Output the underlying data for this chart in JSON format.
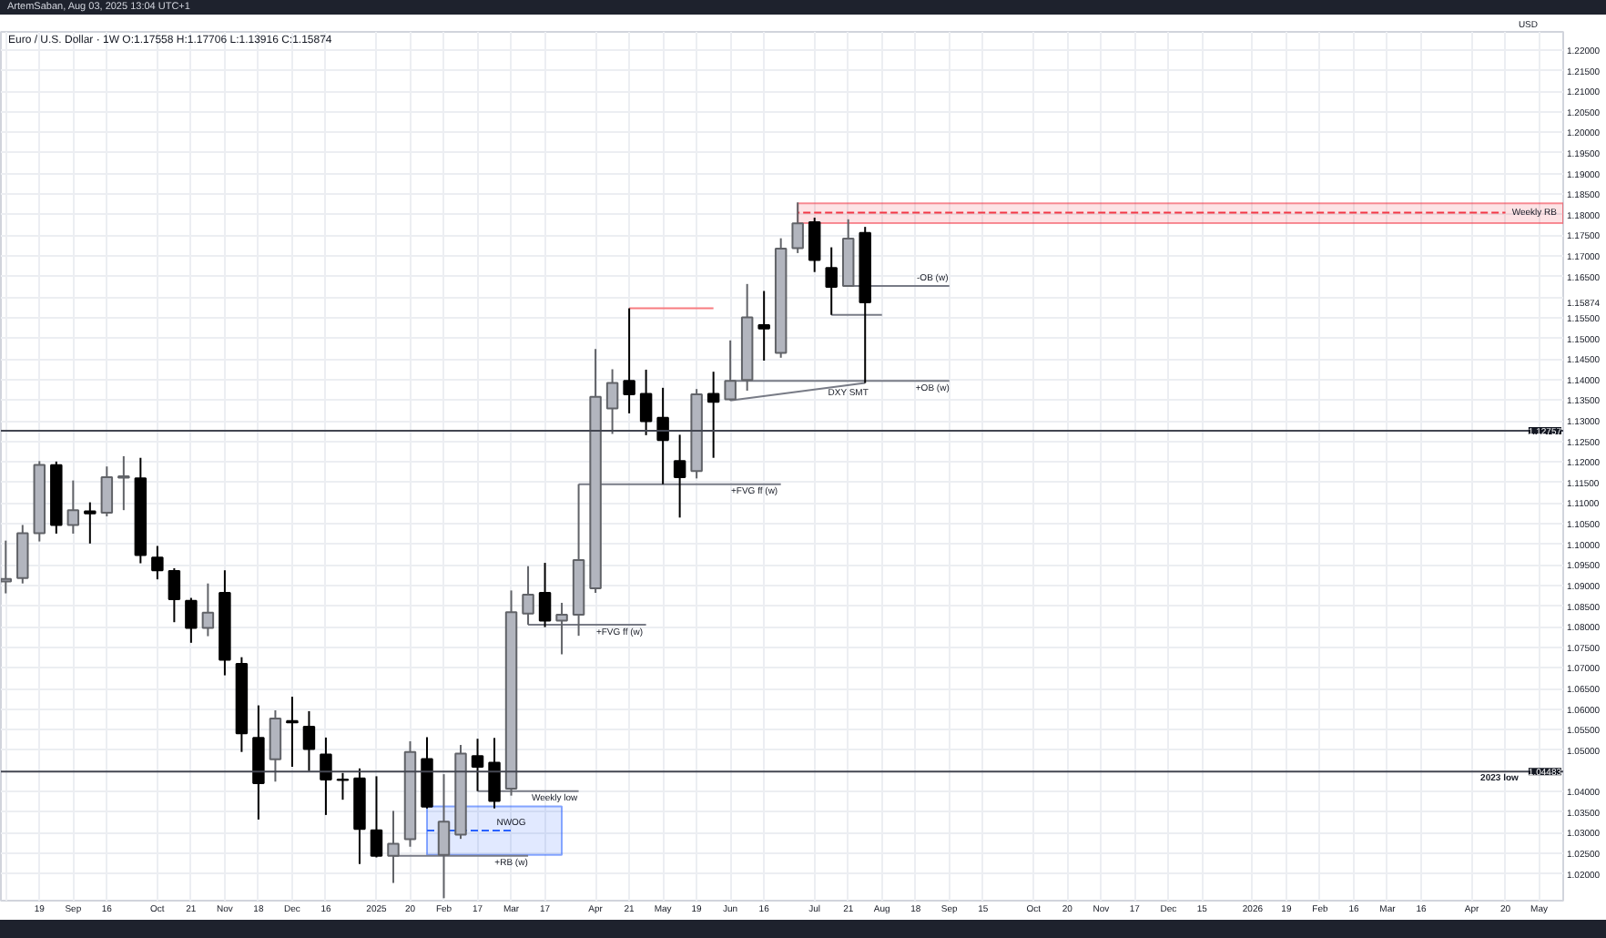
{
  "chart_data": {
    "type": "candlestick",
    "title": "Euro / U.S. Dollar · 1W  O:1.17558 H:1.17706 L:1.13916 C:1.15874",
    "ylabel": "USD",
    "x": [
      "2024-08-05",
      "2024-08-12",
      "2024-08-19",
      "2024-08-26",
      "2024-09-02",
      "2024-09-09",
      "2024-09-16",
      "2024-09-23",
      "2024-09-30",
      "2024-10-07",
      "2024-10-14",
      "2024-10-21",
      "2024-10-28",
      "2024-11-04",
      "2024-11-11",
      "2024-11-18",
      "2024-11-25",
      "2024-12-02",
      "2024-12-09",
      "2024-12-16",
      "2024-12-23",
      "2024-12-30",
      "2025-01-06",
      "2025-01-13",
      "2025-01-20",
      "2025-01-27",
      "2025-02-03",
      "2025-02-10",
      "2025-02-17",
      "2025-02-24",
      "2025-03-03",
      "2025-03-10",
      "2025-03-17",
      "2025-03-24",
      "2025-03-31",
      "2025-04-07",
      "2025-04-14",
      "2025-04-21",
      "2025-04-28",
      "2025-05-05",
      "2025-05-12",
      "2025-05-19",
      "2025-05-26",
      "2025-06-02",
      "2025-06-09",
      "2025-06-16",
      "2025-06-23",
      "2025-06-30",
      "2025-07-07",
      "2025-07-14",
      "2025-07-21",
      "2025-07-28"
    ],
    "ohlc": [
      [
        1.091,
        1.1009,
        1.0881,
        1.0916
      ],
      [
        1.0918,
        1.1047,
        1.0905,
        1.1027
      ],
      [
        1.1027,
        1.1202,
        1.1007,
        1.1193
      ],
      [
        1.1192,
        1.1201,
        1.1026,
        1.1047
      ],
      [
        1.1047,
        1.1155,
        1.1026,
        1.1083
      ],
      [
        1.108,
        1.1102,
        1.1002,
        1.1075
      ],
      [
        1.1077,
        1.1189,
        1.1068,
        1.1163
      ],
      [
        1.1162,
        1.1214,
        1.1083,
        1.1165
      ],
      [
        1.116,
        1.121,
        1.0954,
        1.0974
      ],
      [
        1.0968,
        1.0996,
        1.0915,
        1.0937
      ],
      [
        1.0935,
        1.0942,
        1.0811,
        1.0867
      ],
      [
        1.0863,
        1.087,
        1.0761,
        1.0797
      ],
      [
        1.0797,
        1.0905,
        1.0777,
        1.0834
      ],
      [
        1.0882,
        1.0937,
        1.0682,
        1.072
      ],
      [
        1.071,
        1.0726,
        1.0496,
        1.0541
      ],
      [
        1.053,
        1.0609,
        1.0332,
        1.042
      ],
      [
        1.0478,
        1.0597,
        1.0424,
        1.0577
      ],
      [
        1.0571,
        1.063,
        1.046,
        1.0568
      ],
      [
        1.0557,
        1.0595,
        1.045,
        1.0503
      ],
      [
        1.049,
        1.0531,
        1.0343,
        1.0429
      ],
      [
        1.0429,
        1.0445,
        1.038,
        1.0428
      ],
      [
        1.0432,
        1.0456,
        1.0224,
        1.0309
      ],
      [
        1.0306,
        1.0437,
        1.024,
        1.0244
      ],
      [
        1.0244,
        1.0353,
        1.0178,
        1.0273
      ],
      [
        1.0284,
        1.0522,
        1.0266,
        1.0496
      ],
      [
        1.0479,
        1.0532,
        1.0359,
        1.0363
      ],
      [
        1.0246,
        1.0442,
        1.0141,
        1.0327
      ],
      [
        1.0295,
        1.0513,
        1.0285,
        1.0492
      ],
      [
        1.0486,
        1.0528,
        1.0401,
        1.046
      ],
      [
        1.047,
        1.053,
        1.0359,
        1.0377
      ],
      [
        1.0407,
        1.0888,
        1.039,
        1.0835
      ],
      [
        1.0832,
        1.0947,
        1.0805,
        1.0878
      ],
      [
        1.0882,
        1.0955,
        1.0799,
        1.0815
      ],
      [
        1.0815,
        1.0858,
        1.0733,
        1.0829
      ],
      [
        1.0829,
        1.1146,
        1.0778,
        1.0962
      ],
      [
        1.0893,
        1.1474,
        1.0882,
        1.1358
      ],
      [
        1.133,
        1.1425,
        1.1268,
        1.1392
      ],
      [
        1.1397,
        1.1573,
        1.1318,
        1.1364
      ],
      [
        1.1365,
        1.1424,
        1.1265,
        1.1299
      ],
      [
        1.1307,
        1.138,
        1.1146,
        1.1253
      ],
      [
        1.1202,
        1.1266,
        1.1065,
        1.1163
      ],
      [
        1.1178,
        1.1377,
        1.116,
        1.1364
      ],
      [
        1.1365,
        1.1419,
        1.121,
        1.1346
      ],
      [
        1.1352,
        1.1495,
        1.1349,
        1.1397
      ],
      [
        1.1399,
        1.1632,
        1.1373,
        1.1551
      ],
      [
        1.1532,
        1.1615,
        1.1446,
        1.1524
      ],
      [
        1.1465,
        1.1743,
        1.1453,
        1.1718
      ],
      [
        1.1719,
        1.183,
        1.1707,
        1.1779
      ],
      [
        1.1782,
        1.1793,
        1.1661,
        1.169
      ],
      [
        1.1671,
        1.1721,
        1.1557,
        1.1625
      ],
      [
        1.1627,
        1.1789,
        1.1625,
        1.1742
      ],
      [
        1.17558,
        1.17706,
        1.13916,
        1.15874
      ]
    ],
    "colors": [
      "#b2b5be",
      "#b2b5be",
      "#b2b5be",
      "#000000",
      "#b2b5be",
      "#000000",
      "#b2b5be",
      "#b2b5be",
      "#000000",
      "#000000",
      "#000000",
      "#000000",
      "#b2b5be",
      "#000000",
      "#000000",
      "#000000",
      "#b2b5be",
      "#000000",
      "#000000",
      "#000000",
      "#000000",
      "#000000",
      "#000000",
      "#b2b5be",
      "#b2b5be",
      "#000000",
      "#b2b5be",
      "#b2b5be",
      "#000000",
      "#000000",
      "#b2b5be",
      "#b2b5be",
      "#000000",
      "#b2b5be",
      "#b2b5be",
      "#b2b5be",
      "#b2b5be",
      "#000000",
      "#000000",
      "#000000",
      "#000000",
      "#b2b5be",
      "#000000",
      "#b2b5be",
      "#b2b5be",
      "#000000",
      "#b2b5be",
      "#b2b5be",
      "#000000",
      "#000000",
      "#b2b5be",
      "#000000"
    ],
    "series": [
      {
        "type": "line",
        "color": "#f23645",
        "line_style": "dashed",
        "x": [
          "2025-06-30",
          "2026-04-20",
          "2026-05-14"
        ],
        "values": [
          1.1805,
          1.1805,
          null
        ],
        "lower": [
          1.178,
          1.178,
          1.178
        ],
        "upper": [
          1.1828,
          1.1828,
          1.1828
        ]
      },
      {
        "type": "line",
        "color": "#2962ff",
        "line_style": "dashed",
        "x": [
          "2025-01-27",
          "2025-03-03",
          "2025-03-24"
        ],
        "values": [
          1.0305,
          1.0305,
          null
        ],
        "lower": [
          1.0246,
          1.0246,
          1.0246
        ],
        "upper": [
          1.0364,
          1.0364,
          1.0364
        ]
      },
      {
        "type": "line",
        "color": "#f77c80",
        "x": [
          "2025-04-21",
          "2025-05-26"
        ],
        "values": [
          1.1573,
          1.1573
        ]
      },
      {
        "type": "line",
        "color": "#787b86",
        "x": [
          "2025-07-21",
          "2025-09-01"
        ],
        "values": [
          1.1627,
          1.1627
        ]
      },
      {
        "type": "line",
        "color": "#787b86",
        "x": [
          "2025-07-14",
          "2025-08-04"
        ],
        "values": [
          1.1557,
          1.1557
        ]
      },
      {
        "type": "line",
        "color": "#787b86",
        "x": [
          "2025-06-02",
          "2025-09-01"
        ],
        "values": [
          1.1397,
          1.1397
        ]
      },
      {
        "type": "line",
        "color": "#787b86",
        "x": [
          "2025-06-02",
          "2025-07-28"
        ],
        "values": [
          1.1349,
          1.1392
        ]
      },
      {
        "type": "line",
        "color": "#787b86",
        "x": [
          "2025-03-31",
          "2025-06-23"
        ],
        "values": [
          1.1146,
          1.1146
        ]
      },
      {
        "type": "line",
        "color": "#787b86",
        "x": [
          "2025-03-10",
          "2025-04-28"
        ],
        "values": [
          1.0805,
          1.0805
        ]
      },
      {
        "type": "line",
        "color": "#787b86",
        "x": [
          "2025-02-17",
          "2025-03-31"
        ],
        "values": [
          1.0401,
          1.0401
        ]
      },
      {
        "type": "line",
        "color": "#787b86",
        "x": [
          "2025-01-13",
          "2025-03-10"
        ],
        "values": [
          1.0244,
          1.0244
        ]
      }
    ],
    "ref_lines": [
      {
        "axis": "y",
        "value": 1.12757,
        "label": null,
        "color": "#434651"
      },
      {
        "axis": "y",
        "value": 1.04483,
        "label": "2023 low",
        "color": "#434651"
      }
    ],
    "annotations": [
      "ArtemSaban, Aug 03, 2025 13:04 UTC+1",
      {
        "text": "Weekly RB",
        "x": "2026-05-02",
        "y": 1.1805
      },
      {
        "text": "-OB (w)",
        "x": "2025-08-25",
        "y": 1.1646
      },
      {
        "text": "+OB (w)",
        "x": "2025-08-25",
        "y": 1.1378
      },
      {
        "text": "DXY SMT",
        "x": "2025-07-21",
        "y": 1.1366
      },
      {
        "text": "+FVG ff (w)",
        "x": "2025-06-12",
        "y": 1.1127
      },
      {
        "text": "+FVG ff (w)",
        "x": "2025-04-17",
        "y": 1.0786
      },
      {
        "text": "Weekly low",
        "x": "2025-03-21",
        "y": 1.0382
      },
      {
        "text": "NWOG",
        "x": "2025-03-03",
        "y": 1.0324
      },
      {
        "text": "+RB (w)",
        "x": "2025-03-03",
        "y": 1.0225
      },
      {
        "text": "1.12757",
        "x": "2026-05-14",
        "y": 1.12757
      },
      {
        "text": "1.04483",
        "x": "2026-05-14",
        "y": 1.04483
      }
    ],
    "xlim": [
      "2024-08-03",
      "2026-05-14"
    ],
    "xticks": [
      {
        "value": "2024-08-05",
        "label": null
      },
      {
        "value": "2024-08-19",
        "label": "19"
      },
      {
        "value": "2024-09-02",
        "label": "Sep"
      },
      {
        "value": "2024-09-16",
        "label": "16"
      },
      {
        "value": "2024-10-07",
        "label": "Oct"
      },
      {
        "value": "2024-10-21",
        "label": "21"
      },
      {
        "value": "2024-11-04",
        "label": "Nov"
      },
      {
        "value": "2024-11-18",
        "label": "18"
      },
      {
        "value": "2024-12-02",
        "label": "Dec"
      },
      {
        "value": "2024-12-16",
        "label": "16"
      },
      {
        "value": "2025-01-06",
        "label": "2025"
      },
      {
        "value": "2025-01-20",
        "label": "20"
      },
      {
        "value": "2025-02-03",
        "label": "Feb"
      },
      {
        "value": "2025-02-17",
        "label": "17"
      },
      {
        "value": "2025-03-03",
        "label": "Mar"
      },
      {
        "value": "2025-03-17",
        "label": "17"
      },
      {
        "value": "2025-04-07",
        "label": "Apr"
      },
      {
        "value": "2025-04-21",
        "label": "21"
      },
      {
        "value": "2025-05-05",
        "label": "May"
      },
      {
        "value": "2025-05-19",
        "label": "19"
      },
      {
        "value": "2025-06-02",
        "label": "Jun"
      },
      {
        "value": "2025-06-16",
        "label": "16"
      },
      {
        "value": "2025-07-07",
        "label": "Jul"
      },
      {
        "value": "2025-07-21",
        "label": "21"
      },
      {
        "value": "2025-08-04",
        "label": "Aug"
      },
      {
        "value": "2025-08-18",
        "label": "18"
      },
      {
        "value": "2025-09-01",
        "label": "Sep"
      },
      {
        "value": "2025-09-15",
        "label": "15"
      },
      {
        "value": "2025-10-06",
        "label": "Oct"
      },
      {
        "value": "2025-10-20",
        "label": "20"
      },
      {
        "value": "2025-11-03",
        "label": "Nov"
      },
      {
        "value": "2025-11-17",
        "label": "17"
      },
      {
        "value": "2025-12-01",
        "label": "Dec"
      },
      {
        "value": "2025-12-15",
        "label": "15"
      },
      {
        "value": "2026-01-05",
        "label": "2026"
      },
      {
        "value": "2026-01-19",
        "label": "19"
      },
      {
        "value": "2026-02-02",
        "label": "Feb"
      },
      {
        "value": "2026-02-16",
        "label": "16"
      },
      {
        "value": "2026-03-02",
        "label": "Mar"
      },
      {
        "value": "2026-03-16",
        "label": "16"
      },
      {
        "value": "2026-04-06",
        "label": "Apr"
      },
      {
        "value": "2026-04-20",
        "label": "20"
      },
      {
        "value": "2026-05-04",
        "label": "May"
      }
    ],
    "ylim": [
      1.0135,
      1.2244
    ],
    "yticks": [
      {
        "value": 1.02,
        "label": "1.02000"
      },
      {
        "value": 1.025,
        "label": "1.02500"
      },
      {
        "value": 1.03,
        "label": "1.03000"
      },
      {
        "value": 1.035,
        "label": "1.03500"
      },
      {
        "value": 1.04,
        "label": "1.04000"
      },
      {
        "value": 1.045,
        "label": null
      },
      {
        "value": 1.05,
        "label": "1.05000"
      },
      {
        "value": 1.055,
        "label": "1.05500"
      },
      {
        "value": 1.06,
        "label": "1.06000"
      },
      {
        "value": 1.065,
        "label": "1.06500"
      },
      {
        "value": 1.07,
        "label": "1.07000"
      },
      {
        "value": 1.075,
        "label": "1.07500"
      },
      {
        "value": 1.08,
        "label": "1.08000"
      },
      {
        "value": 1.085,
        "label": "1.08500"
      },
      {
        "value": 1.09,
        "label": "1.09000"
      },
      {
        "value": 1.095,
        "label": "1.09500"
      },
      {
        "value": 1.1,
        "label": "1.10000"
      },
      {
        "value": 1.105,
        "label": "1.10500"
      },
      {
        "value": 1.11,
        "label": "1.11000"
      },
      {
        "value": 1.115,
        "label": "1.11500"
      },
      {
        "value": 1.12,
        "label": "1.12000"
      },
      {
        "value": 1.125,
        "label": "1.12500"
      },
      {
        "value": 1.13,
        "label": "1.13000"
      },
      {
        "value": 1.135,
        "label": "1.13500"
      },
      {
        "value": 1.14,
        "label": "1.14000"
      },
      {
        "value": 1.145,
        "label": "1.14500"
      },
      {
        "value": 1.15,
        "label": "1.15000"
      },
      {
        "value": 1.155,
        "label": "1.15500"
      },
      {
        "value": 1.15874,
        "label": "1.15874"
      },
      {
        "value": 1.16,
        "label": null
      },
      {
        "value": 1.165,
        "label": "1.16500"
      },
      {
        "value": 1.17,
        "label": "1.17000"
      },
      {
        "value": 1.175,
        "label": "1.17500"
      },
      {
        "value": 1.18,
        "label": "1.18000"
      },
      {
        "value": 1.185,
        "label": "1.18500"
      },
      {
        "value": 1.19,
        "label": "1.19000"
      },
      {
        "value": 1.195,
        "label": "1.19500"
      },
      {
        "value": 1.2,
        "label": "1.20000"
      },
      {
        "value": 1.205,
        "label": "1.20500"
      },
      {
        "value": 1.21,
        "label": "1.21000"
      },
      {
        "value": 1.215,
        "label": "1.21500"
      },
      {
        "value": 1.22,
        "label": "1.22000"
      }
    ],
    "grid": true
  }
}
